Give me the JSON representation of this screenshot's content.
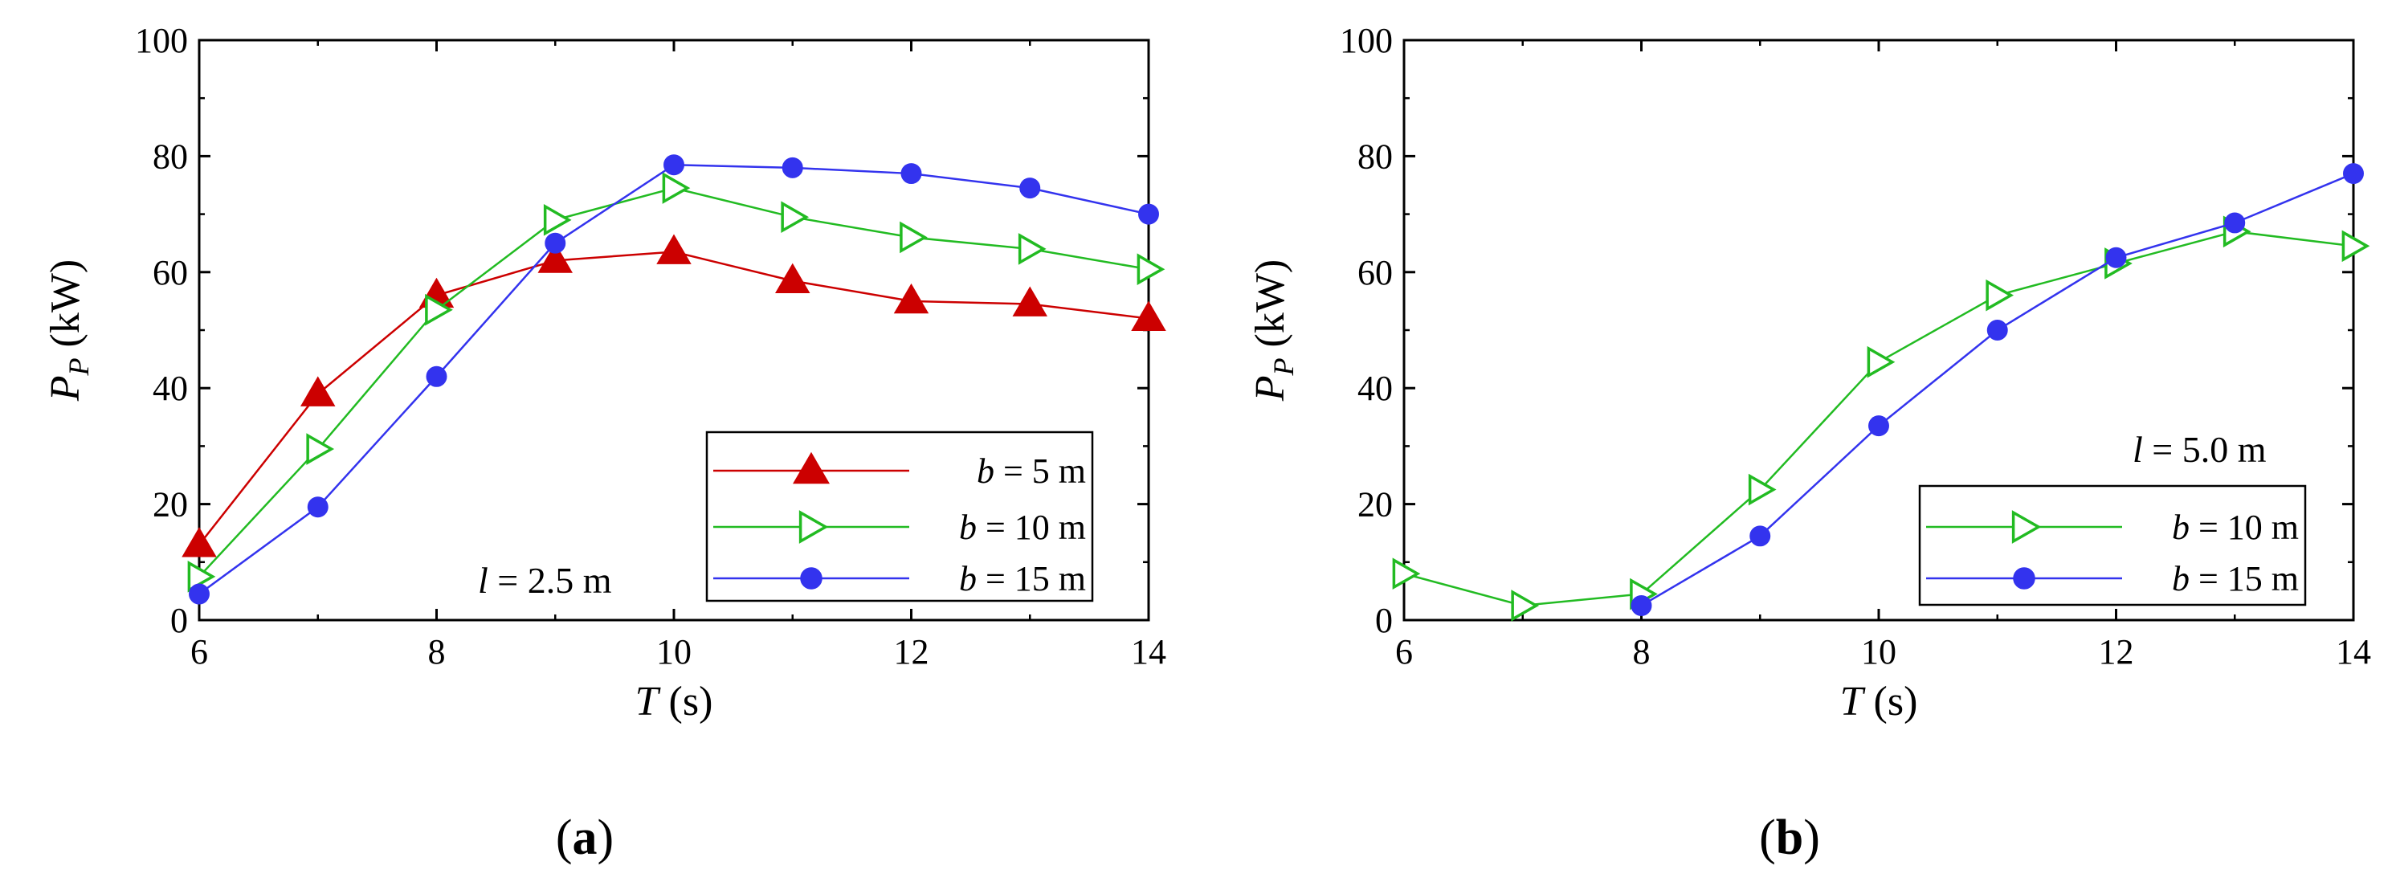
{
  "chart_data": [
    {
      "type": "line",
      "panel_label": "(a)",
      "xlabel": "T (s)",
      "ylabel": "P_P (kW)",
      "xlim": [
        6,
        14
      ],
      "ylim": [
        0,
        100
      ],
      "xticks": [
        6,
        8,
        10,
        12,
        14
      ],
      "yticks": [
        0,
        20,
        40,
        60,
        80,
        100
      ],
      "annotation": "l = 2.5 m",
      "legend_position": "bottom-right",
      "series": [
        {
          "name": "b = 5 m",
          "color": "#cc0000",
          "marker": "filled-triangle",
          "x": [
            6,
            7,
            8,
            9,
            10,
            11,
            12,
            13,
            14
          ],
          "y": [
            13,
            39,
            56,
            62,
            63.5,
            58.5,
            55,
            54.5,
            52
          ]
        },
        {
          "name": "b = 10 m",
          "color": "#22bb22",
          "marker": "open-right-triangle",
          "x": [
            6,
            7,
            8,
            9,
            10,
            11,
            12,
            13,
            14
          ],
          "y": [
            7.5,
            29.5,
            53.5,
            69,
            74.5,
            69.5,
            66,
            64,
            60.5
          ]
        },
        {
          "name": "b = 15 m",
          "color": "#3333ee",
          "marker": "filled-circle",
          "x": [
            6,
            7,
            8,
            9,
            10,
            11,
            12,
            13,
            14
          ],
          "y": [
            4.5,
            19.5,
            42,
            65,
            78.5,
            78,
            77,
            74.5,
            70
          ]
        }
      ]
    },
    {
      "type": "line",
      "panel_label": "(b)",
      "xlabel": "T (s)",
      "ylabel": "P_P (kW)",
      "xlim": [
        6,
        14
      ],
      "ylim": [
        0,
        100
      ],
      "xticks": [
        6,
        8,
        10,
        12,
        14
      ],
      "yticks": [
        0,
        20,
        40,
        60,
        80,
        100
      ],
      "annotation": "l = 5.0 m",
      "legend_position": "bottom-right",
      "series": [
        {
          "name": "b = 10 m",
          "color": "#22bb22",
          "marker": "open-right-triangle",
          "x": [
            6,
            7,
            8,
            9,
            10,
            11,
            12,
            13,
            14
          ],
          "y": [
            8,
            2.5,
            4.5,
            22.5,
            44.5,
            56,
            61.5,
            67,
            64.5
          ]
        },
        {
          "name": "b = 15 m",
          "color": "#3333ee",
          "marker": "filled-circle",
          "x": [
            8,
            9,
            10,
            11,
            12,
            13,
            14
          ],
          "y": [
            2.5,
            14.5,
            33.5,
            50,
            62.5,
            68.5,
            77
          ]
        }
      ]
    }
  ]
}
